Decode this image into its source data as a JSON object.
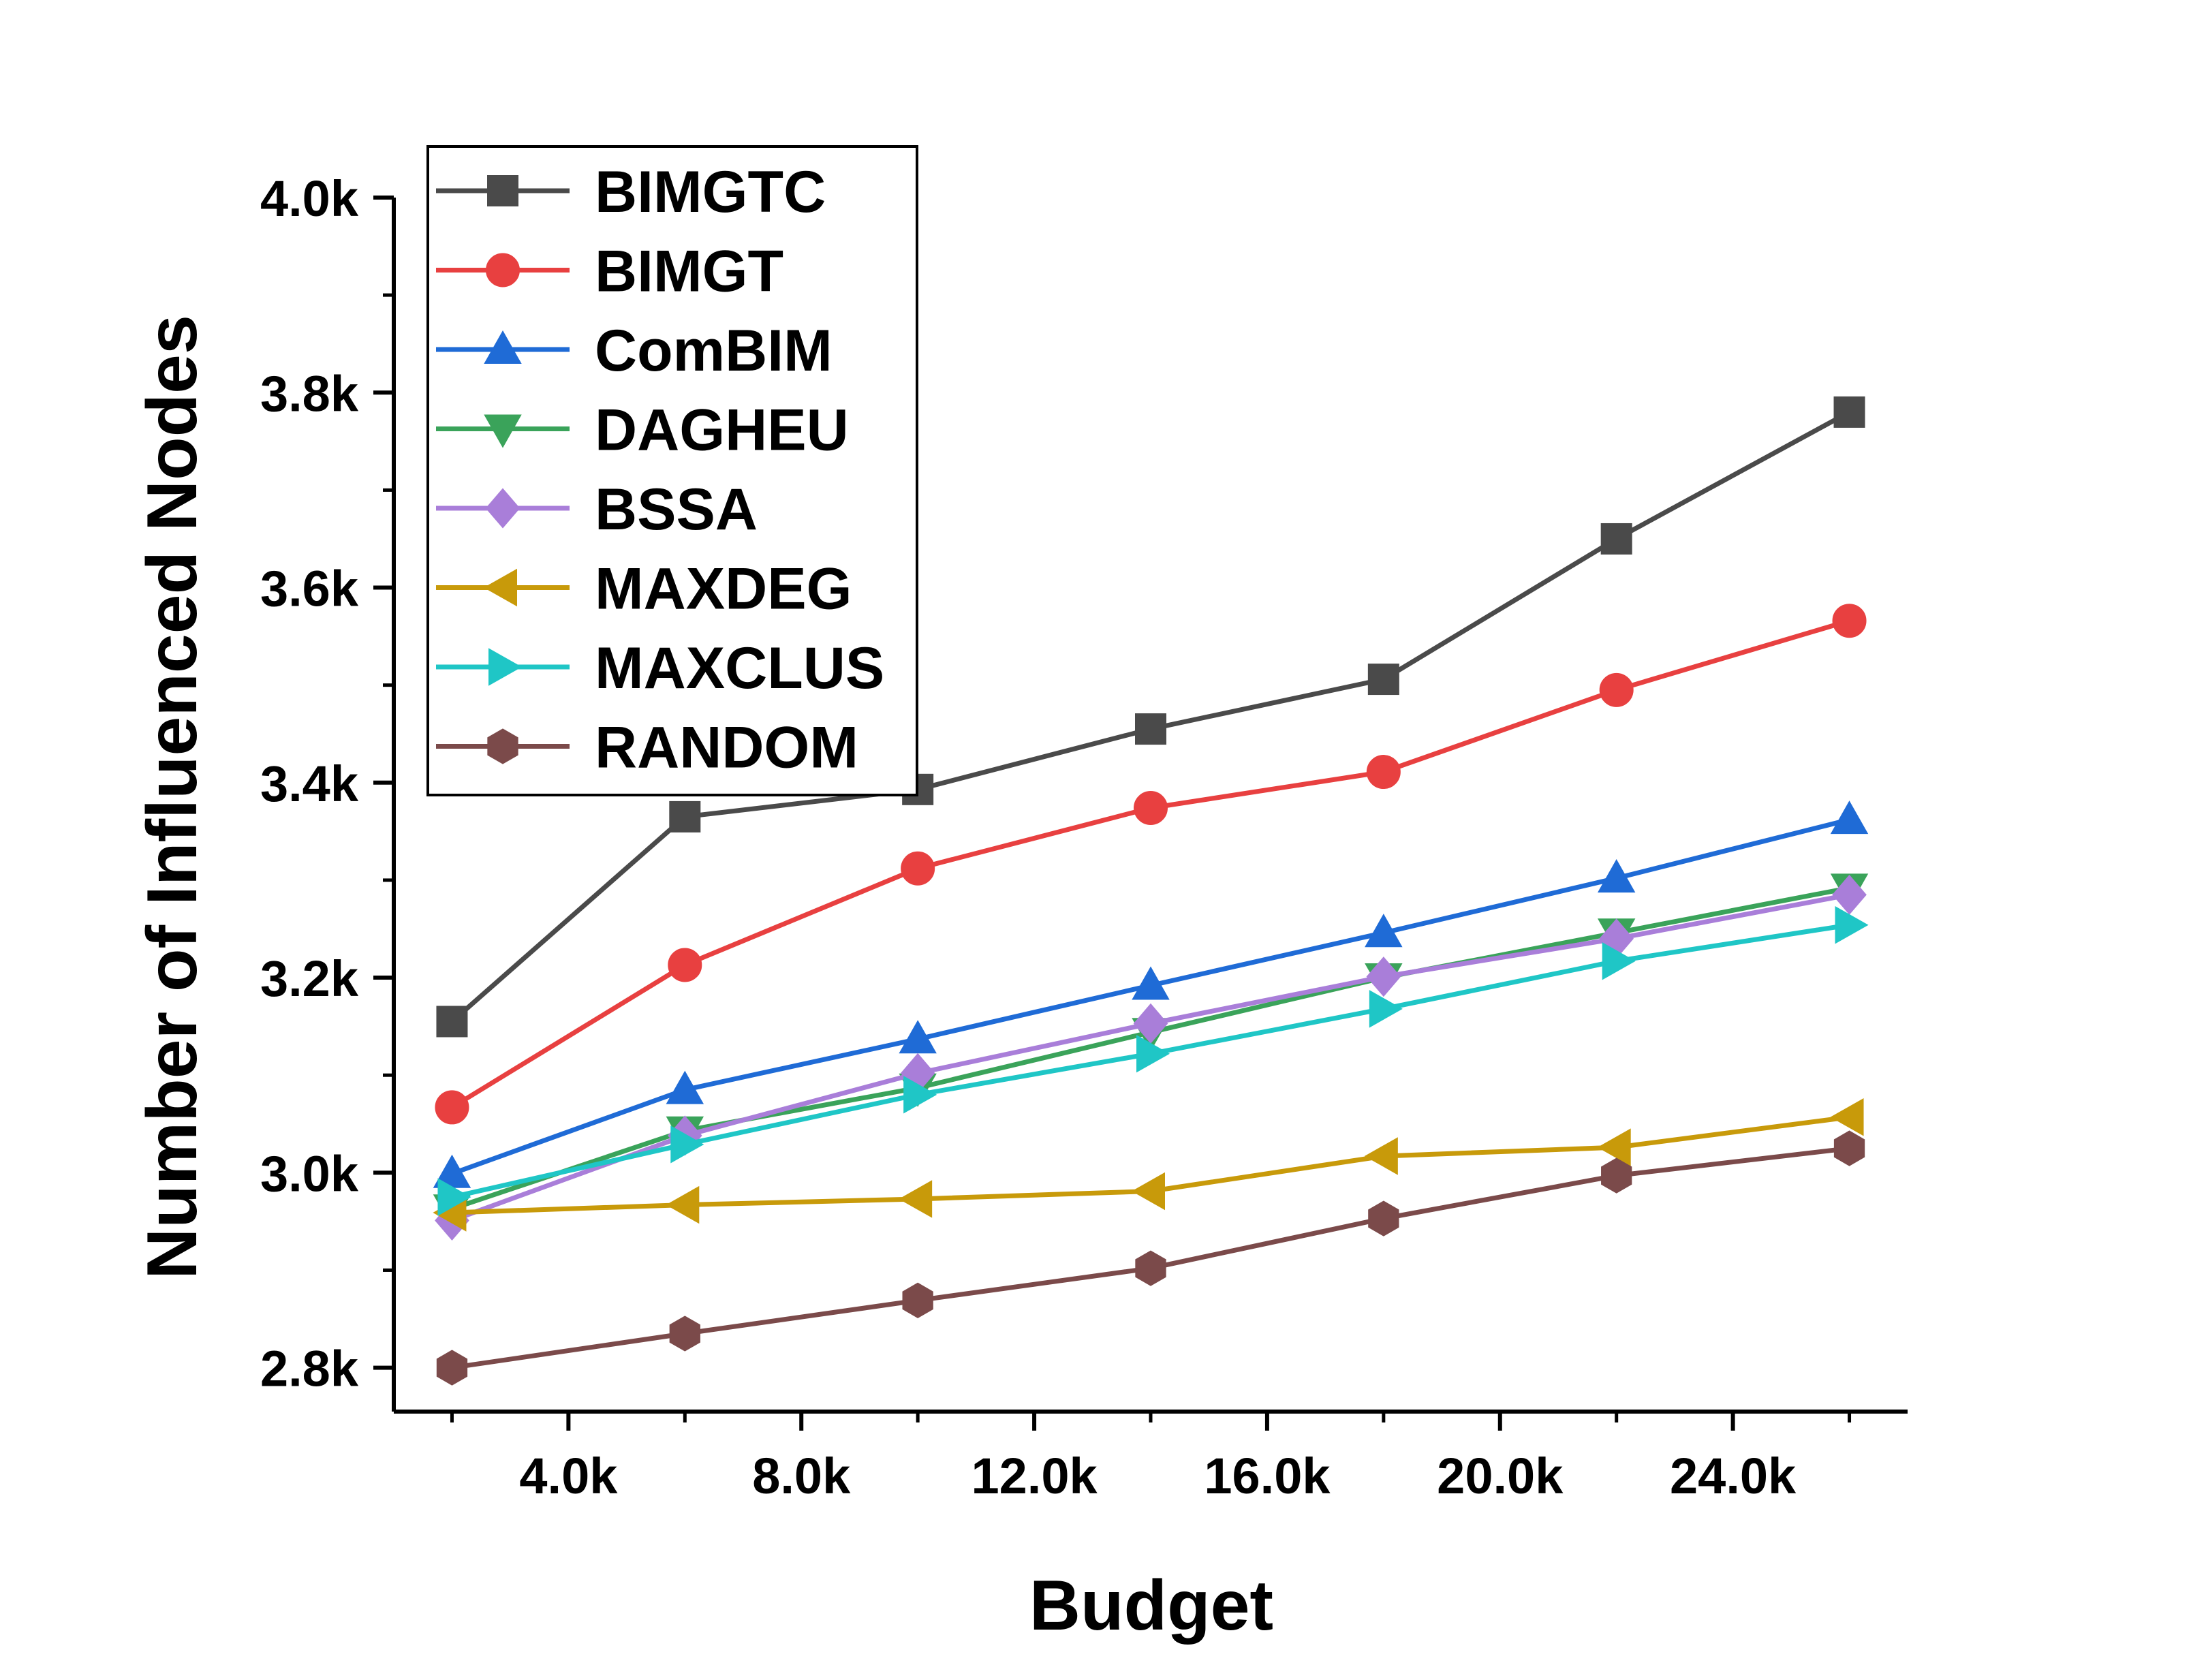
{
  "chart_data": {
    "type": "line",
    "title": "",
    "xlabel": "Budget",
    "ylabel": "Number of Influenced Nodes",
    "xlim": [
      1000,
      27000
    ],
    "ylim": [
      2755,
      4000
    ],
    "x_ticks": [
      4000,
      8000,
      12000,
      16000,
      20000,
      24000
    ],
    "x_tick_labels": [
      "4.0k",
      "8.0k",
      "12.0k",
      "16.0k",
      "20.0k",
      "24.0k"
    ],
    "y_ticks": [
      2800,
      3000,
      3200,
      3400,
      3600,
      3800,
      4000
    ],
    "y_tick_labels": [
      "2.8k",
      "3.0k",
      "3.2k",
      "3.4k",
      "3.6k",
      "3.8k",
      "4.0k"
    ],
    "grid": false,
    "legend_position": "top-left",
    "x": [
      2000,
      6000,
      10000,
      14000,
      18000,
      22000,
      26000
    ],
    "series": [
      {
        "name": "BIMGTC",
        "color": "#4a4a4a",
        "marker": "square",
        "values": [
          3155,
          3365,
          3393,
          3455,
          3506,
          3650,
          3780
        ]
      },
      {
        "name": "BIMGT",
        "color": "#e84040",
        "marker": "circle",
        "values": [
          3067,
          3213,
          3312,
          3374,
          3411,
          3495,
          3566
        ]
      },
      {
        "name": "ComBIM",
        "color": "#1f6bd6",
        "marker": "triangle-up",
        "values": [
          2999,
          3085,
          3137,
          3192,
          3246,
          3302,
          3362
        ]
      },
      {
        "name": "DAGHEU",
        "color": "#3aa35a",
        "marker": "triangle-down",
        "values": [
          2963,
          3043,
          3087,
          3144,
          3200,
          3246,
          3292
        ]
      },
      {
        "name": "BSSA",
        "color": "#a97ed9",
        "marker": "diamond",
        "values": [
          2951,
          3038,
          3102,
          3153,
          3201,
          3240,
          3285
        ]
      },
      {
        "name": "MAXDEG",
        "color": "#c89a0a",
        "marker": "triangle-left",
        "values": [
          2959,
          2967,
          2973,
          2981,
          3017,
          3026,
          3057
        ]
      },
      {
        "name": "MAXCLUS",
        "color": "#1fc6c6",
        "marker": "triangle-right",
        "values": [
          2975,
          3029,
          3080,
          3122,
          3168,
          3217,
          3254
        ]
      },
      {
        "name": "RANDOM",
        "color": "#7b4a4a",
        "marker": "hexagon",
        "values": [
          2800,
          2835,
          2869,
          2902,
          2953,
          2997,
          3025
        ]
      }
    ]
  }
}
